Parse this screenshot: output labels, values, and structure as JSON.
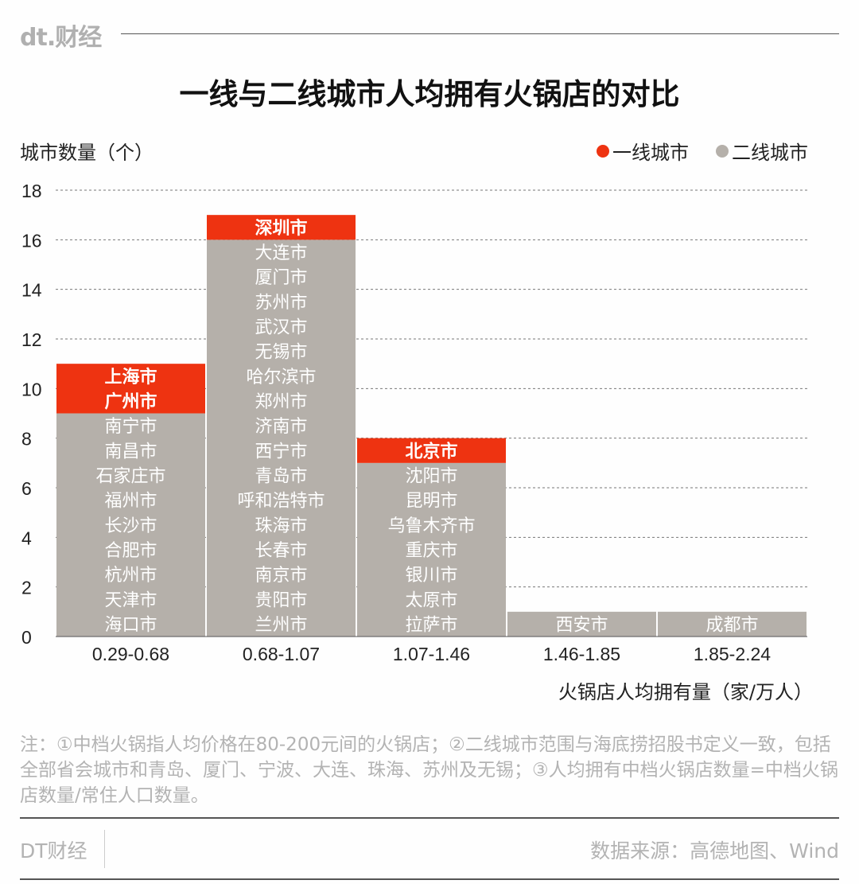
{
  "header": {
    "logo": "dt.财经"
  },
  "chart_data": {
    "type": "bar",
    "stacked": true,
    "title": "一线与二线城市人均拥有火锅店的对比",
    "ylabel": "城市数量（个）",
    "xlabel": "火锅店人均拥有量（家/万人）",
    "ylim": [
      0,
      18
    ],
    "yticks": [
      0,
      2,
      4,
      6,
      8,
      10,
      12,
      14,
      16,
      18
    ],
    "grid": true,
    "legend_position": "top-right",
    "categories": [
      "0.29-0.68",
      "0.68-1.07",
      "1.07-1.46",
      "1.46-1.85",
      "1.85-2.24"
    ],
    "series": [
      {
        "name": "一线城市",
        "color": "#ee3311",
        "values": [
          2,
          1,
          1,
          0,
          0
        ],
        "cities": [
          [
            "上海市",
            "广州市"
          ],
          [
            "深圳市"
          ],
          [
            "北京市"
          ],
          [],
          []
        ]
      },
      {
        "name": "二线城市",
        "color": "#b5b0aa",
        "values": [
          9,
          16,
          7,
          1,
          1
        ],
        "cities": [
          [
            "南宁市",
            "南昌市",
            "石家庄市",
            "福州市",
            "长沙市",
            "合肥市",
            "杭州市",
            "天津市",
            "海口市"
          ],
          [
            "大连市",
            "厦门市",
            "苏州市",
            "武汉市",
            "无锡市",
            "哈尔滨市",
            "郑州市",
            "济南市",
            "西宁市",
            "青岛市",
            "呼和浩特市",
            "珠海市",
            "长春市",
            "南京市",
            "贵阳市",
            "兰州市"
          ],
          [
            "沈阳市",
            "昆明市",
            "乌鲁木齐市",
            "重庆市",
            "银川市",
            "太原市",
            "拉萨市"
          ],
          [
            "西安市"
          ],
          [
            "成都市"
          ]
        ]
      }
    ]
  },
  "note": "注：①中档火锅指人均价格在80-200元间的火锅店；②二线城市范围与海底捞招股书定义一致，包括全部省会城市和青岛、厦门、宁波、大连、珠海、苏州及无锡；③人均拥有中档火锅店数量=中档火锅店数量/常住人口数量。",
  "footer": {
    "brand": "DT财经",
    "source": "数据来源：高德地图、Wind"
  }
}
